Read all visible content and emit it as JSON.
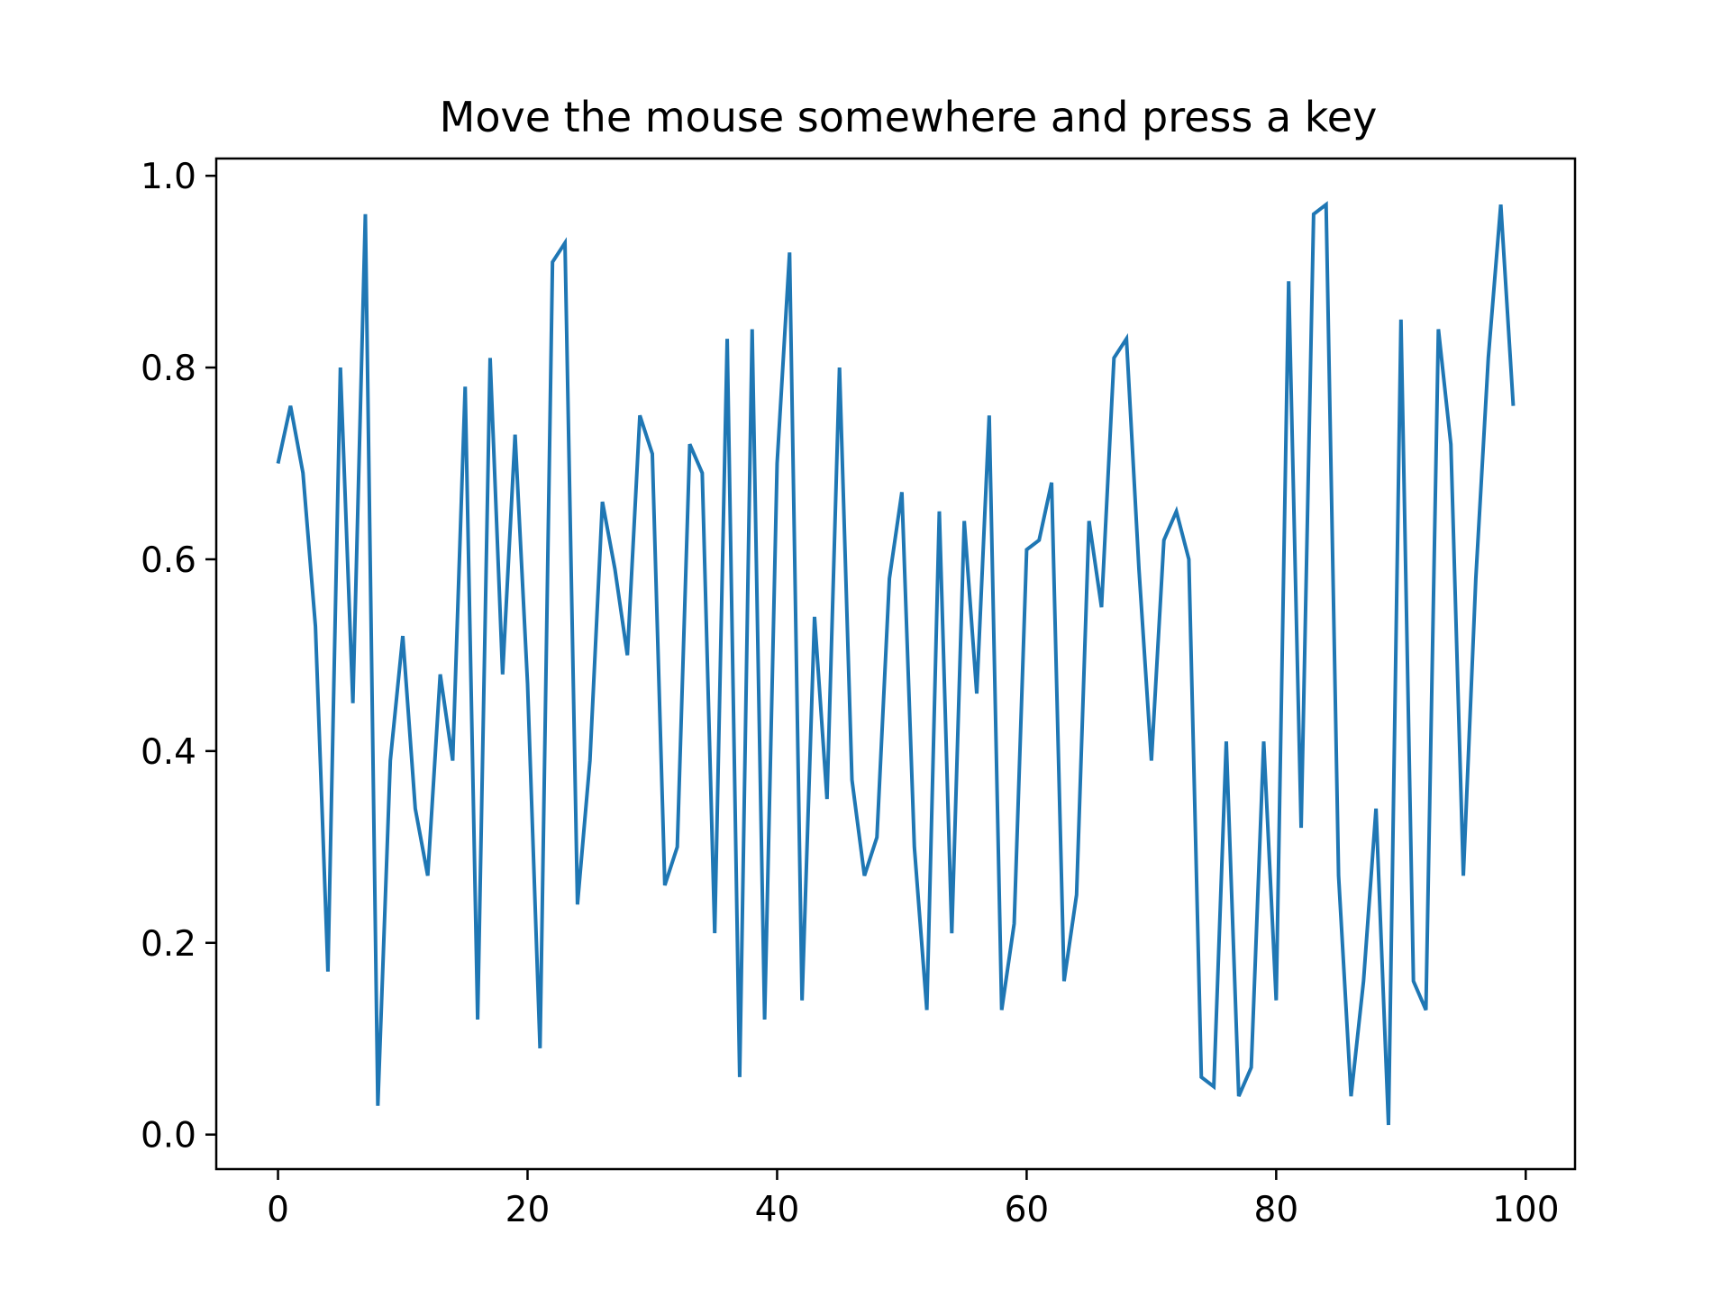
{
  "chart_data": {
    "type": "line",
    "title": "Move the mouse somewhere and press a key",
    "xlabel": "",
    "ylabel": "",
    "xlim": [
      -4.95,
      103.95
    ],
    "ylim": [
      -0.036,
      1.018
    ],
    "xticks": [
      0,
      20,
      40,
      60,
      80,
      100
    ],
    "yticks": [
      0.0,
      0.2,
      0.4,
      0.6,
      0.8,
      1.0
    ],
    "xtick_labels": [
      "0",
      "20",
      "40",
      "60",
      "80",
      "100"
    ],
    "ytick_labels": [
      "0.0",
      "0.2",
      "0.4",
      "0.6",
      "0.8",
      "1.0"
    ],
    "grid": false,
    "legend": "none",
    "series": [
      {
        "color": "#1f77b4",
        "x": [
          0,
          1,
          2,
          3,
          4,
          5,
          6,
          7,
          8,
          9,
          10,
          11,
          12,
          13,
          14,
          15,
          16,
          17,
          18,
          19,
          20,
          21,
          22,
          23,
          24,
          25,
          26,
          27,
          28,
          29,
          30,
          31,
          32,
          33,
          34,
          35,
          36,
          37,
          38,
          39,
          40,
          41,
          42,
          43,
          44,
          45,
          46,
          47,
          48,
          49,
          50,
          51,
          52,
          53,
          54,
          55,
          56,
          57,
          58,
          59,
          60,
          61,
          62,
          63,
          64,
          65,
          66,
          67,
          68,
          69,
          70,
          71,
          72,
          73,
          74,
          75,
          76,
          77,
          78,
          79,
          80,
          81,
          82,
          83,
          84,
          85,
          86,
          87,
          88,
          89,
          90,
          91,
          92,
          93,
          94,
          95,
          96,
          97,
          98,
          99
        ],
        "values": [
          0.7,
          0.76,
          0.69,
          0.53,
          0.17,
          0.8,
          0.45,
          0.96,
          0.03,
          0.39,
          0.52,
          0.34,
          0.27,
          0.48,
          0.39,
          0.78,
          0.12,
          0.81,
          0.48,
          0.73,
          0.47,
          0.09,
          0.91,
          0.93,
          0.24,
          0.39,
          0.66,
          0.59,
          0.5,
          0.75,
          0.71,
          0.26,
          0.3,
          0.72,
          0.69,
          0.21,
          0.83,
          0.06,
          0.84,
          0.12,
          0.7,
          0.92,
          0.14,
          0.54,
          0.35,
          0.8,
          0.37,
          0.27,
          0.31,
          0.58,
          0.67,
          0.3,
          0.13,
          0.65,
          0.21,
          0.64,
          0.46,
          0.75,
          0.13,
          0.22,
          0.61,
          0.62,
          0.68,
          0.16,
          0.25,
          0.64,
          0.55,
          0.81,
          0.83,
          0.59,
          0.39,
          0.62,
          0.65,
          0.6,
          0.06,
          0.05,
          0.41,
          0.04,
          0.07,
          0.41,
          0.14,
          0.89,
          0.32,
          0.96,
          0.97,
          0.27,
          0.04,
          0.16,
          0.34,
          0.01,
          0.85,
          0.16,
          0.13,
          0.84,
          0.72,
          0.27,
          0.58,
          0.81,
          0.97,
          0.76
        ]
      }
    ]
  }
}
